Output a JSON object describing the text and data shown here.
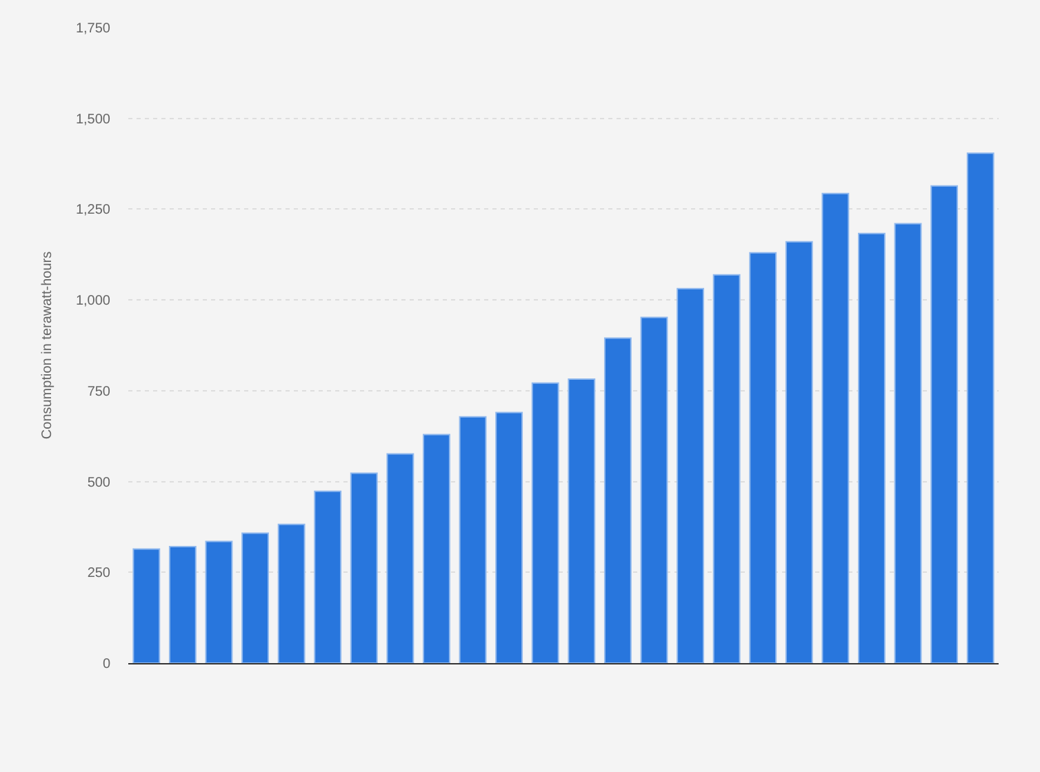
{
  "chart_data": {
    "type": "bar",
    "ylabel": "Consumption in terawatt-hours",
    "categories": [
      null,
      null,
      null,
      null,
      null,
      null,
      null,
      null,
      null,
      null,
      null,
      null,
      null,
      null,
      null,
      null,
      null,
      null,
      null,
      null,
      null,
      null,
      null,
      null
    ],
    "values": [
      314,
      321,
      335,
      358,
      382,
      473,
      523,
      576,
      629,
      678,
      690,
      771,
      782,
      895,
      952,
      1031,
      1069,
      1130,
      1160,
      1293,
      1183,
      1210,
      1314,
      1404
    ],
    "color": "#2876dd",
    "ylim": [
      0,
      1750
    ],
    "yticks": [
      0,
      {
        "value": 250,
        "label": "250"
      },
      {
        "value": 500,
        "label": "500"
      },
      {
        "value": 750,
        "label": "750"
      },
      {
        "value": 1000,
        "label": "1,000"
      },
      {
        "value": 1250,
        "label": "1,250"
      },
      {
        "value": 1500,
        "label": "1,500"
      },
      {
        "value": 1750,
        "label": "1,750"
      }
    ],
    "grid": "y"
  }
}
